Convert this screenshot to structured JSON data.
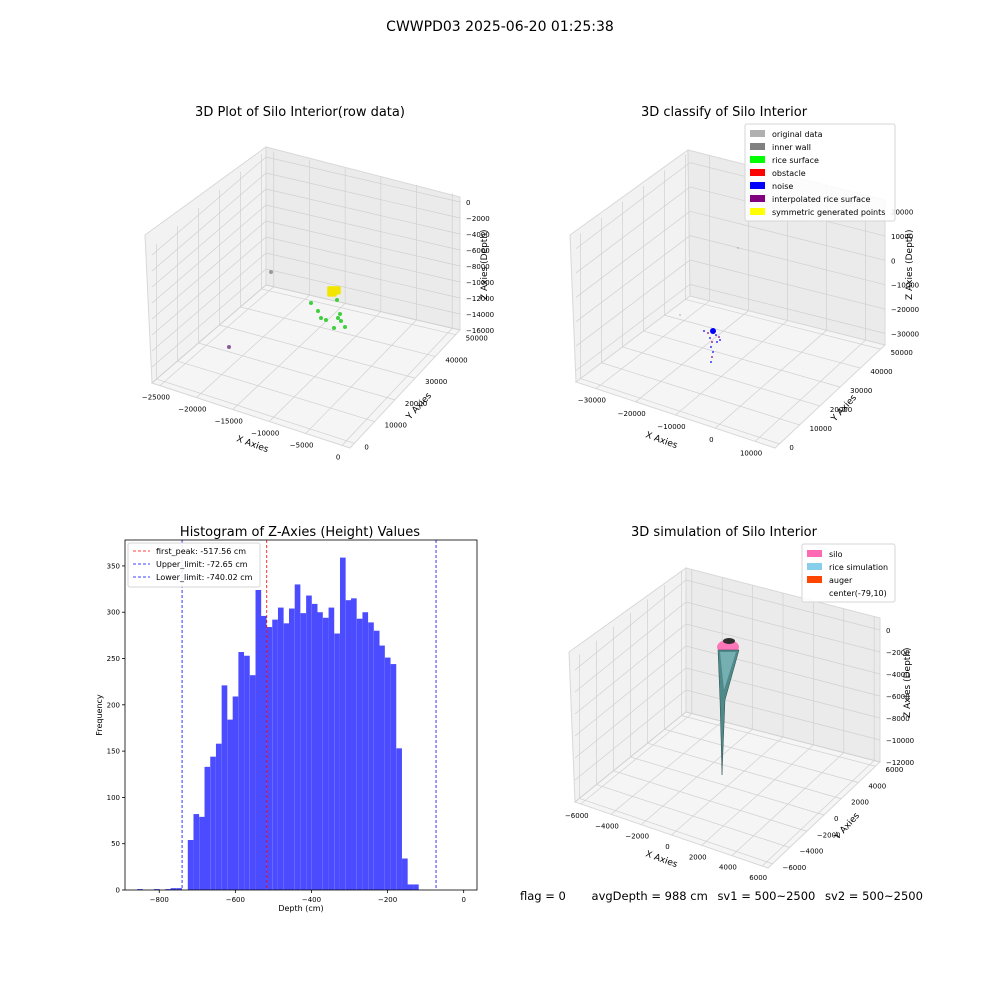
{
  "figure": {
    "suptitle": "CWWPD03 2025-06-20 01:25:38",
    "status": {
      "flag": "flag = 0",
      "avg_depth": "avgDepth = 988 cm",
      "sv1": "sv1 = 500~2500",
      "sv2": "sv2 = 500~2500"
    }
  },
  "chart_data": [
    {
      "type": "scatter",
      "projection": "3d",
      "title": "3D Plot of Silo Interior(row data)",
      "xlabel": "X Axies",
      "ylabel": "Y Axies",
      "zlabel": "Z Axies (Depth)",
      "x_ticks": [
        "−25000",
        "−20000",
        "−15000",
        "−10000",
        "−5000",
        "0"
      ],
      "y_ticks": [
        "0",
        "10000",
        "20000",
        "30000",
        "40000",
        "50000"
      ],
      "z_ticks": [
        "0",
        "−2000",
        "−4000",
        "−6000",
        "−8000",
        "−10000",
        "−12000",
        "−14000",
        "−16000"
      ],
      "grid": true,
      "colors": {
        "gray": "#9a9a9a",
        "green": "#3ecf3e",
        "yellow": "#f2e600",
        "purple": "#8a5a9a"
      }
    },
    {
      "type": "scatter",
      "projection": "3d",
      "title": "3D classify of Silo Interior",
      "xlabel": "X Axies",
      "ylabel": "Y Axies",
      "zlabel": "Z Axies (Depth)",
      "x_ticks": [
        "−30000",
        "−20000",
        "−10000",
        "0",
        "10000"
      ],
      "y_ticks": [
        "0",
        "10000",
        "20000",
        "30000",
        "40000",
        "50000"
      ],
      "z_ticks": [
        "20000",
        "10000",
        "0",
        "−10000",
        "−20000",
        "−30000"
      ],
      "legend": [
        {
          "label": "original data",
          "color": "#b0b0b0"
        },
        {
          "label": "inner wall",
          "color": "#808080"
        },
        {
          "label": "rice surface",
          "color": "#00ff00"
        },
        {
          "label": "obstacle",
          "color": "#ff0000"
        },
        {
          "label": "noise",
          "color": "#0000ff"
        },
        {
          "label": "interpolated rice surface",
          "color": "#800080"
        },
        {
          "label": "symmetric generated points",
          "color": "#ffff00"
        }
      ],
      "legend_position": "top-right",
      "grid": true
    },
    {
      "type": "bar",
      "title": "Histogram of Z-Axies (Height) Values",
      "xlabel": "Depth (cm)",
      "ylabel": "Frequency",
      "xlim": [
        -890,
        35
      ],
      "ylim": [
        0,
        378
      ],
      "x_ticks": [
        -800,
        -600,
        -400,
        -200,
        0
      ],
      "y_ticks": [
        0,
        50,
        100,
        150,
        200,
        250,
        300,
        350
      ],
      "bin_width": 14.8,
      "bar_color": "#4b4bff",
      "bins": [
        {
          "x": -858,
          "y": 1
        },
        {
          "x": -814,
          "y": 1
        },
        {
          "x": -784,
          "y": 1
        },
        {
          "x": -770,
          "y": 2
        },
        {
          "x": -755,
          "y": 2
        },
        {
          "x": -725,
          "y": 54
        },
        {
          "x": -710,
          "y": 82
        },
        {
          "x": -695,
          "y": 79
        },
        {
          "x": -681,
          "y": 133
        },
        {
          "x": -666,
          "y": 144
        },
        {
          "x": -651,
          "y": 158
        },
        {
          "x": -636,
          "y": 221
        },
        {
          "x": -621,
          "y": 184
        },
        {
          "x": -607,
          "y": 209
        },
        {
          "x": -592,
          "y": 257
        },
        {
          "x": -577,
          "y": 253
        },
        {
          "x": -562,
          "y": 232
        },
        {
          "x": -547,
          "y": 324
        },
        {
          "x": -533,
          "y": 296
        },
        {
          "x": -518,
          "y": 284
        },
        {
          "x": -503,
          "y": 292
        },
        {
          "x": -488,
          "y": 305
        },
        {
          "x": -473,
          "y": 288
        },
        {
          "x": -459,
          "y": 304
        },
        {
          "x": -444,
          "y": 330
        },
        {
          "x": -429,
          "y": 299
        },
        {
          "x": -414,
          "y": 318
        },
        {
          "x": -399,
          "y": 309
        },
        {
          "x": -385,
          "y": 300
        },
        {
          "x": -370,
          "y": 294
        },
        {
          "x": -355,
          "y": 305
        },
        {
          "x": -340,
          "y": 277
        },
        {
          "x": -325,
          "y": 359
        },
        {
          "x": -310,
          "y": 313
        },
        {
          "x": -296,
          "y": 315
        },
        {
          "x": -281,
          "y": 293
        },
        {
          "x": -266,
          "y": 300
        },
        {
          "x": -251,
          "y": 289
        },
        {
          "x": -236,
          "y": 280
        },
        {
          "x": -222,
          "y": 264
        },
        {
          "x": -207,
          "y": 251
        },
        {
          "x": -192,
          "y": 244
        },
        {
          "x": -177,
          "y": 153
        },
        {
          "x": -162,
          "y": 34
        },
        {
          "x": -148,
          "y": 6
        },
        {
          "x": -133,
          "y": 6
        }
      ],
      "vlines": [
        {
          "label": "first_peak: -517.56 cm",
          "x": -517.56,
          "color": "#ff0000"
        },
        {
          "label": "Upper_limit: -72.65 cm",
          "x": -72.65,
          "color": "#0000ff"
        },
        {
          "label": "Lower_limit: -740.02 cm",
          "x": -740.02,
          "color": "#0000ff"
        }
      ],
      "legend_position": "top-left"
    },
    {
      "type": "surface",
      "projection": "3d",
      "title": "3D simulation of Silo Interior",
      "xlabel": "X Axies",
      "ylabel": "Y Axies",
      "zlabel": "Z Axies (Depth)",
      "x_ticks": [
        "−6000",
        "−4000",
        "−2000",
        "0",
        "2000",
        "4000",
        "6000"
      ],
      "y_ticks": [
        "−6000",
        "−4000",
        "−2000",
        "0",
        "2000",
        "4000",
        "6000"
      ],
      "z_ticks": [
        "0",
        "−2000",
        "−4000",
        "−6000",
        "−8000",
        "−10000",
        "−12000"
      ],
      "legend": [
        {
          "label": "silo",
          "color": "#ff69b4"
        },
        {
          "label": "rice simulation",
          "color": "#87ceeb"
        },
        {
          "label": "auger",
          "color": "#ff4500"
        },
        {
          "label": "center(-79,10)",
          "color": "#ffffff"
        }
      ],
      "legend_position": "top-right",
      "grid": true
    }
  ]
}
